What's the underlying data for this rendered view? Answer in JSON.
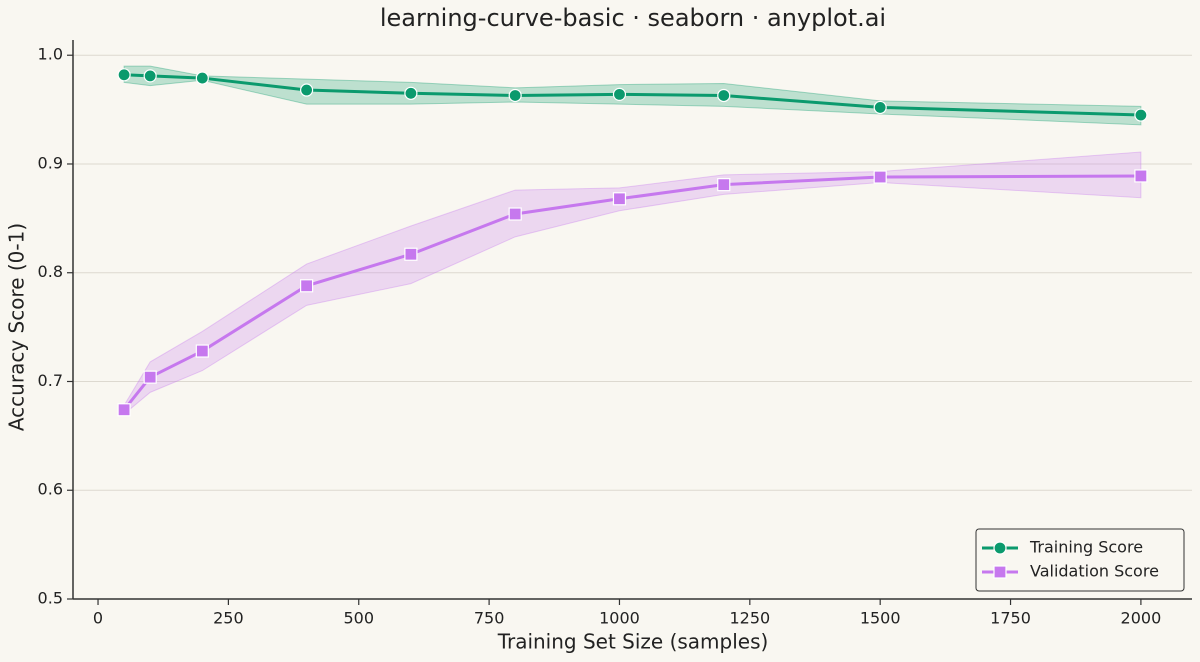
{
  "chart_data": {
    "type": "line",
    "title": "learning-curve-basic · seaborn · anyplot.ai",
    "x_label": "Training Set Size (samples)",
    "y_label": "Accuracy Score (0-1)",
    "x": [
      50,
      100,
      200,
      400,
      600,
      800,
      1000,
      1200,
      1500,
      2000
    ],
    "series": [
      {
        "name": "Training Score",
        "color": "#0b9a6d",
        "marker": "circle",
        "values": [
          0.982,
          0.981,
          0.979,
          0.968,
          0.965,
          0.963,
          0.964,
          0.963,
          0.952,
          0.945
        ],
        "upper": [
          0.99,
          0.99,
          0.981,
          0.978,
          0.975,
          0.97,
          0.973,
          0.974,
          0.958,
          0.953
        ],
        "lower": [
          0.975,
          0.972,
          0.977,
          0.955,
          0.955,
          0.957,
          0.955,
          0.953,
          0.946,
          0.936
        ]
      },
      {
        "name": "Validation Score",
        "color": "#c678ee",
        "marker": "square",
        "values": [
          0.674,
          0.704,
          0.728,
          0.788,
          0.817,
          0.854,
          0.868,
          0.881,
          0.888,
          0.889
        ],
        "upper": [
          0.678,
          0.718,
          0.746,
          0.808,
          0.843,
          0.876,
          0.878,
          0.89,
          0.893,
          0.911
        ],
        "lower": [
          0.67,
          0.69,
          0.71,
          0.77,
          0.79,
          0.833,
          0.857,
          0.872,
          0.883,
          0.869
        ]
      }
    ],
    "xlim": [
      -48,
      2098
    ],
    "ylim": [
      0.5,
      1.014
    ],
    "xticks": [
      0,
      250,
      500,
      750,
      1000,
      1250,
      1500,
      1750,
      2000
    ],
    "yticks": [
      0.5,
      0.6,
      0.7,
      0.8,
      0.9,
      {
        "value": 1,
        "label": "1.0"
      }
    ],
    "grid": "y",
    "legend": "lower right"
  }
}
